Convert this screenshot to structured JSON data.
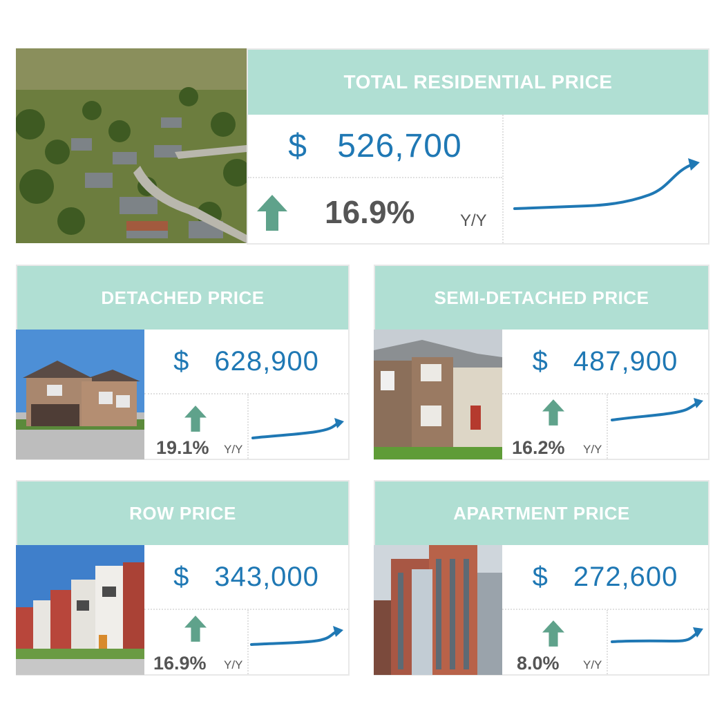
{
  "colors": {
    "header_bg": "#b0dfd3",
    "price_text": "#1f78b4",
    "arrow": "#5fa28b",
    "sparkline": "#1f78b4"
  },
  "total": {
    "title": "TOTAL RESIDENTIAL PRICE",
    "currency": "$",
    "price": "526,700",
    "change": "16.9%",
    "period": "Y/Y",
    "direction": "up",
    "photo": "aerial-neighborhood-photo"
  },
  "detached": {
    "title": "DETACHED PRICE",
    "currency": "$",
    "price": "628,900",
    "change": "19.1%",
    "period": "Y/Y",
    "direction": "up",
    "photo": "detached-house-photo"
  },
  "semi": {
    "title": "SEMI-DETACHED PRICE",
    "currency": "$",
    "price": "487,900",
    "change": "16.2%",
    "period": "Y/Y",
    "direction": "up",
    "photo": "semi-detached-house-photo"
  },
  "row": {
    "title": "ROW PRICE",
    "currency": "$",
    "price": "343,000",
    "change": "16.9%",
    "period": "Y/Y",
    "direction": "up",
    "photo": "row-houses-photo"
  },
  "apartment": {
    "title": "APARTMENT PRICE",
    "currency": "$",
    "price": "272,600",
    "change": "8.0%",
    "period": "Y/Y",
    "direction": "up",
    "photo": "apartment-tower-photo"
  }
}
